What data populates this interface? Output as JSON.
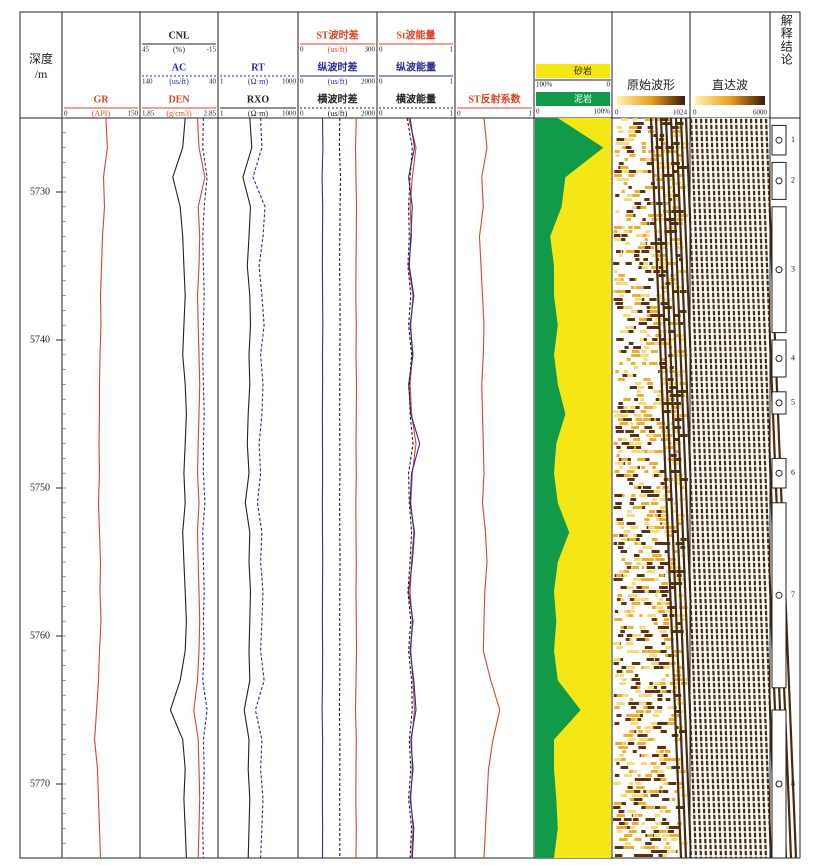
{
  "chart_data": {
    "type": "well-log",
    "depth_title": [
      "深度",
      "/m"
    ],
    "ylim": [
      5725,
      5775
    ],
    "yticks": [
      5730,
      5740,
      5750,
      5760,
      5770
    ],
    "depths": [
      5725,
      5727,
      5729,
      5731,
      5733,
      5735,
      5737,
      5739,
      5741,
      5743,
      5745,
      5747,
      5749,
      5751,
      5753,
      5755,
      5757,
      5759,
      5761,
      5763,
      5765,
      5767,
      5769,
      5771,
      5773,
      5775
    ],
    "tracks": [
      {
        "curves": [
          {
            "name": "GR",
            "unit": "(API)",
            "xlim": [
              0,
              150
            ],
            "color": "#d9442a",
            "dash": false,
            "values": [
              85,
              88,
              80,
              82,
              78,
              76,
              74,
              75,
              73,
              72,
              72,
              71,
              72,
              70,
              72,
              74,
              73,
              75,
              72,
              70,
              66,
              62,
              68,
              70,
              72,
              74
            ]
          }
        ]
      },
      {
        "curves": [
          {
            "name": "CNL",
            "unit": "(%)",
            "xlim": [
              45,
              -15
            ],
            "color": "#222222",
            "dash": false,
            "values": [
              10,
              12,
              20,
              14,
              12,
              11,
              10,
              11,
              12,
              10,
              9,
              10,
              11,
              10,
              12,
              11,
              10,
              9,
              10,
              14,
              22,
              12,
              10,
              11,
              10,
              9
            ]
          },
          {
            "name": "AC",
            "unit": "(us/ft)",
            "xlim": [
              140,
              40
            ],
            "color": "#2b2b9a",
            "dash": true,
            "values": [
              57,
              58,
              52,
              56,
              58,
              57,
              56,
              57,
              58,
              57,
              56,
              57,
              57,
              55,
              58,
              57,
              56,
              57,
              56,
              58,
              52,
              57,
              56,
              57,
              58,
              57
            ]
          },
          {
            "name": "DEN",
            "unit": "(g/cm3)",
            "xlim": [
              1.85,
              2.85
            ],
            "color": "#d9442a",
            "dash": false,
            "values": [
              2.6,
              2.62,
              2.7,
              2.61,
              2.63,
              2.62,
              2.6,
              2.61,
              2.62,
              2.63,
              2.62,
              2.61,
              2.6,
              2.62,
              2.6,
              2.61,
              2.62,
              2.63,
              2.62,
              2.6,
              2.55,
              2.61,
              2.62,
              2.63,
              2.62,
              2.61
            ]
          }
        ]
      },
      {
        "log": true,
        "curves": [
          {
            "name": "RT",
            "unit": "(Ω·m)",
            "xlim": [
              1,
              1000
            ],
            "color": "#2b2b9a",
            "dash": true,
            "values": [
              40,
              45,
              20,
              60,
              50,
              35,
              45,
              55,
              40,
              50,
              45,
              35,
              40,
              30,
              45,
              40,
              50,
              45,
              40,
              55,
              25,
              45,
              40,
              50,
              45,
              40
            ]
          },
          {
            "name": "RXO",
            "unit": "(Ω·m)",
            "xlim": [
              1,
              1000
            ],
            "color": "#222222",
            "dash": false,
            "values": [
              15,
              18,
              8,
              16,
              14,
              12,
              15,
              16,
              14,
              15,
              13,
              12,
              14,
              10,
              15,
              14,
              16,
              15,
              14,
              15,
              9,
              14,
              13,
              15,
              14,
              13
            ]
          }
        ]
      },
      {
        "curves": [
          {
            "name": "ST波时差",
            "unit": "(us/ft)",
            "xlim": [
              0,
              300
            ],
            "color": "#d9442a",
            "dash": false,
            "values": [
              225,
              222,
              224,
              226,
              225,
              224,
              223,
              225,
              224,
              226,
              225,
              224,
              225,
              223,
              224,
              225,
              224,
              225,
              226,
              224,
              222,
              225,
              224,
              223,
              225,
              224
            ]
          },
          {
            "name": "纵波时差",
            "unit": "(us/ft)",
            "xlim": [
              0,
              2000
            ],
            "color": "#2b2b9a",
            "dash": false,
            "values": [
              600,
              610,
              590,
              605,
              600,
              598,
              602,
              608,
              600,
              604,
              598,
              600,
              602,
              596,
              600,
              606,
              600,
              598,
              602,
              600,
              590,
              604,
              600,
              598,
              602,
              600
            ]
          },
          {
            "name": "横波时差",
            "unit": "(us/ft)",
            "xlim": [
              0,
              2000
            ],
            "color": "#222222",
            "dash": true,
            "values": [
              1060,
              1050,
              1080,
              1070,
              1060,
              1055,
              1065,
              1070,
              1060,
              1062,
              1058,
              1060,
              1064,
              1055,
              1060,
              1066,
              1060,
              1058,
              1062,
              1060,
              1050,
              1064,
              1060,
              1058,
              1062,
              1060
            ]
          }
        ]
      },
      {
        "curves": [
          {
            "name": "St波能量",
            "xlim": [
              0,
              1
            ],
            "color": "#d9442a",
            "dash": false,
            "values": [
              0.4,
              0.5,
              0.45,
              0.42,
              0.44,
              0.4,
              0.46,
              0.43,
              0.45,
              0.42,
              0.44,
              0.5,
              0.45,
              0.43,
              0.47,
              0.44,
              0.42,
              0.45,
              0.43,
              0.46,
              0.48,
              0.44,
              0.45,
              0.43,
              0.46,
              0.44
            ]
          },
          {
            "name": "纵波能量",
            "xlim": [
              0,
              1
            ],
            "color": "#2b2b9a",
            "dash": false,
            "values": [
              0.42,
              0.48,
              0.4,
              0.45,
              0.43,
              0.41,
              0.47,
              0.42,
              0.46,
              0.4,
              0.43,
              0.55,
              0.44,
              0.42,
              0.48,
              0.45,
              0.4,
              0.46,
              0.42,
              0.47,
              0.5,
              0.43,
              0.46,
              0.42,
              0.47,
              0.45
            ]
          },
          {
            "name": "横波能量",
            "xlim": [
              0,
              1
            ],
            "color": "#222222",
            "dash": true,
            "values": [
              0.38,
              0.45,
              0.42,
              0.4,
              0.41,
              0.39,
              0.43,
              0.4,
              0.44,
              0.41,
              0.42,
              0.46,
              0.4,
              0.41,
              0.44,
              0.42,
              0.39,
              0.43,
              0.4,
              0.44,
              0.45,
              0.41,
              0.43,
              0.4,
              0.44,
              0.42
            ]
          }
        ]
      },
      {
        "curves": [
          {
            "name": "ST反射系数",
            "xlim": [
              0,
              1
            ],
            "color": "#d9442a",
            "dash": false,
            "values": [
              0.36,
              0.4,
              0.33,
              0.35,
              0.3,
              0.32,
              0.34,
              0.36,
              0.35,
              0.33,
              0.34,
              0.35,
              0.36,
              0.34,
              0.38,
              0.4,
              0.37,
              0.36,
              0.35,
              0.45,
              0.57,
              0.48,
              0.42,
              0.4,
              0.38,
              0.36
            ]
          }
        ]
      }
    ],
    "lithology": {
      "sand": {
        "name": "砂岩",
        "color": "#f5e616",
        "xlim": [
          {
            "value": 100,
            "label": "100%"
          },
          0
        ]
      },
      "mud": {
        "name": "泥岩",
        "color": "#119a4a",
        "xlim": [
          0,
          {
            "value": 100,
            "label": "100%"
          }
        ],
        "values": [
          30,
          90,
          40,
          35,
          20,
          25,
          25,
          30,
          25,
          30,
          40,
          28,
          25,
          30,
          45,
          30,
          25,
          28,
          25,
          30,
          60,
          25,
          25,
          28,
          30,
          25
        ]
      }
    },
    "waveforms": [
      {
        "name": "原始波形",
        "xlim": [
          0,
          1024
        ]
      },
      {
        "name": "直达波",
        "xlim": [
          0,
          6000
        ]
      }
    ],
    "conclusion": {
      "title": "解释结论",
      "layers": [
        {
          "number": "1",
          "top": 5725.5,
          "bottom": 5727.5
        },
        {
          "number": "2",
          "top": 5728,
          "bottom": 5730.5
        },
        {
          "number": "3",
          "top": 5731,
          "bottom": 5739.5
        },
        {
          "number": "4",
          "top": 5740,
          "bottom": 5742.5
        },
        {
          "number": "5",
          "top": 5743.5,
          "bottom": 5745
        },
        {
          "number": "6",
          "top": 5748,
          "bottom": 5750
        },
        {
          "number": "7",
          "top": 5751,
          "bottom": 5763.5
        },
        {
          "number": "8",
          "top": 5765,
          "bottom": 5775
        }
      ]
    }
  }
}
